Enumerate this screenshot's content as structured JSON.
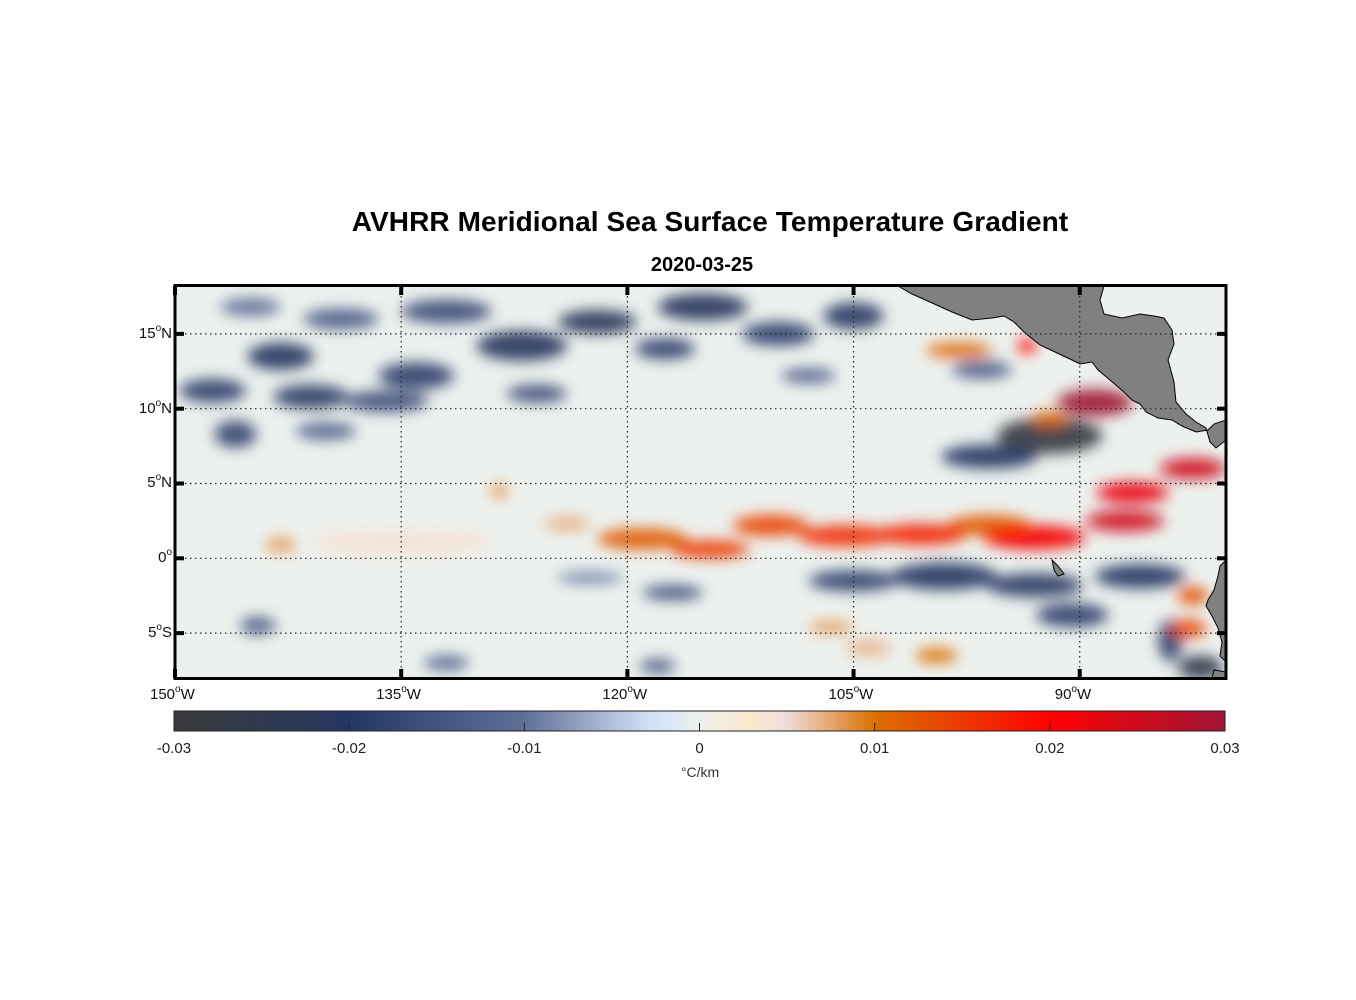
{
  "chart_data": {
    "type": "heatmap",
    "title": "AVHRR Meridional Sea Surface Temperature Gradient",
    "subtitle": "2020-03-25",
    "xlabel": "",
    "ylabel": "",
    "xlim": [
      -150,
      -80.3
    ],
    "ylim": [
      -8,
      18.2
    ],
    "grid": true,
    "x_ticks": [
      {
        "value": -150,
        "num": "150",
        "deg": "o",
        "hemi": "W"
      },
      {
        "value": -135,
        "num": "135",
        "deg": "o",
        "hemi": "W"
      },
      {
        "value": -120,
        "num": "120",
        "deg": "o",
        "hemi": "W"
      },
      {
        "value": -105,
        "num": "105",
        "deg": "o",
        "hemi": "W"
      },
      {
        "value": -90,
        "num": "90",
        "deg": "o",
        "hemi": "W"
      }
    ],
    "y_ticks": [
      {
        "value": 15,
        "num": "15",
        "deg": "o",
        "hemi": "N"
      },
      {
        "value": 10,
        "num": "10",
        "deg": "o",
        "hemi": "N"
      },
      {
        "value": 5,
        "num": "5",
        "deg": "o",
        "hemi": "N"
      },
      {
        "value": 0,
        "num": "0",
        "deg": "o",
        "hemi": ""
      },
      {
        "value": -5,
        "num": "5",
        "deg": "o",
        "hemi": "S"
      }
    ],
    "colorbar": {
      "range": [
        -0.03,
        0.03
      ],
      "ticks": [
        -0.03,
        -0.02,
        -0.01,
        0,
        0.01,
        0.02,
        0.03
      ],
      "tick_labels": [
        "-0.03",
        "-0.02",
        "-0.01",
        "0",
        "0.01",
        "0.02",
        "0.03"
      ],
      "unit": "°C/km",
      "placement": "bottom",
      "colormap": [
        [
          -0.03,
          "#3b3b3b"
        ],
        [
          -0.02,
          "#243761"
        ],
        [
          -0.01,
          "#5f7097"
        ],
        [
          -0.003,
          "#cde0f6"
        ],
        [
          0,
          "#eef0ee"
        ],
        [
          0.003,
          "#fbe8cc"
        ],
        [
          0.005,
          "#eedcdc"
        ],
        [
          0.01,
          "#db7100"
        ],
        [
          0.02,
          "#ff0000"
        ],
        [
          0.03,
          "#a01535"
        ]
      ]
    },
    "land_color": "#808080",
    "field_features": [
      {
        "lon": -143,
        "lat": 13.5,
        "value": -0.02,
        "rlon": 2.2,
        "rlat": 0.9
      },
      {
        "lon": -147.5,
        "lat": 11.2,
        "value": -0.018,
        "rlon": 2.2,
        "rlat": 0.8
      },
      {
        "lon": -141,
        "lat": 10.8,
        "value": -0.019,
        "rlon": 2.5,
        "rlat": 0.8
      },
      {
        "lon": -146,
        "lat": 8.3,
        "value": -0.017,
        "rlon": 1.4,
        "rlat": 0.9
      },
      {
        "lon": -136,
        "lat": 10.5,
        "value": -0.016,
        "rlon": 2.8,
        "rlat": 0.7
      },
      {
        "lon": -134,
        "lat": 12.2,
        "value": -0.018,
        "rlon": 2.5,
        "rlat": 0.9
      },
      {
        "lon": -127,
        "lat": 14.2,
        "value": -0.021,
        "rlon": 3,
        "rlat": 1
      },
      {
        "lon": -122,
        "lat": 15.8,
        "value": -0.022,
        "rlon": 2.6,
        "rlat": 0.8
      },
      {
        "lon": -115,
        "lat": 16.8,
        "value": -0.021,
        "rlon": 3,
        "rlat": 0.9
      },
      {
        "lon": -117.5,
        "lat": 14,
        "value": -0.018,
        "rlon": 2,
        "rlat": 0.7
      },
      {
        "lon": -110,
        "lat": 15,
        "value": -0.018,
        "rlon": 2.4,
        "rlat": 0.8
      },
      {
        "lon": -105,
        "lat": 16.2,
        "value": -0.019,
        "rlon": 2,
        "rlat": 0.9
      },
      {
        "lon": -108,
        "lat": 12.2,
        "value": -0.013,
        "rlon": 1.8,
        "rlat": 0.5
      },
      {
        "lon": -126,
        "lat": 11,
        "value": -0.016,
        "rlon": 2,
        "rlat": 0.6
      },
      {
        "lon": -140,
        "lat": 8.5,
        "value": -0.012,
        "rlon": 2,
        "rlat": 0.6
      },
      {
        "lon": -132,
        "lat": 16.5,
        "value": -0.016,
        "rlon": 3,
        "rlat": 0.8
      },
      {
        "lon": -139,
        "lat": 16,
        "value": -0.013,
        "rlon": 2.5,
        "rlat": 0.7
      },
      {
        "lon": -145,
        "lat": 16.8,
        "value": -0.01,
        "rlon": 2,
        "rlat": 0.6
      },
      {
        "lon": -92,
        "lat": 8.2,
        "value": -0.028,
        "rlon": 3.5,
        "rlat": 1.2
      },
      {
        "lon": -96,
        "lat": 6.8,
        "value": -0.02,
        "rlon": 3.2,
        "rlat": 0.8
      },
      {
        "lon": -96.5,
        "lat": 12.6,
        "value": -0.013,
        "rlon": 2,
        "rlat": 0.6
      },
      {
        "lon": -96,
        "lat": 2.2,
        "value": 0.012,
        "rlon": 2.8,
        "rlat": 0.7
      },
      {
        "lon": -89,
        "lat": 10.4,
        "value": 0.03,
        "rlon": 2.5,
        "rlat": 0.9
      },
      {
        "lon": -93.5,
        "lat": 14.2,
        "value": 0.02,
        "rlon": 0.6,
        "rlat": 0.5
      },
      {
        "lon": -98,
        "lat": 13.9,
        "value": 0.011,
        "rlon": 2.2,
        "rlat": 0.5
      },
      {
        "lon": -92,
        "lat": 9.3,
        "value": 0.011,
        "rlon": 1.2,
        "rlat": 0.5
      },
      {
        "lon": -143,
        "lat": 0.9,
        "value": 0.008,
        "rlon": 1,
        "rlat": 0.5
      },
      {
        "lon": -135,
        "lat": 1.1,
        "value": 0.004,
        "rlon": 6,
        "rlat": 0.8
      },
      {
        "lon": -128.5,
        "lat": 4.5,
        "value": 0.008,
        "rlon": 0.6,
        "rlat": 0.5
      },
      {
        "lon": -124,
        "lat": 2.3,
        "value": 0.007,
        "rlon": 1.5,
        "rlat": 0.5
      },
      {
        "lon": -119,
        "lat": 1.3,
        "value": 0.012,
        "rlon": 3,
        "rlat": 0.7
      },
      {
        "lon": -114.5,
        "lat": 0.6,
        "value": 0.015,
        "rlon": 2.6,
        "rlat": 0.6
      },
      {
        "lon": -110.5,
        "lat": 2.2,
        "value": 0.014,
        "rlon": 2.5,
        "rlat": 0.7
      },
      {
        "lon": -105.5,
        "lat": 1.5,
        "value": 0.016,
        "rlon": 3.2,
        "rlat": 0.7
      },
      {
        "lon": -100.5,
        "lat": 1.6,
        "value": 0.017,
        "rlon": 3,
        "rlat": 0.7
      },
      {
        "lon": -93,
        "lat": 1.4,
        "value": 0.021,
        "rlon": 3.4,
        "rlat": 0.8
      },
      {
        "lon": -87,
        "lat": 2.5,
        "value": 0.025,
        "rlon": 2.6,
        "rlat": 0.7
      },
      {
        "lon": -86.5,
        "lat": 4.4,
        "value": 0.022,
        "rlon": 2.4,
        "rlat": 0.7
      },
      {
        "lon": -82.5,
        "lat": 6,
        "value": 0.025,
        "rlon": 2.2,
        "rlat": 0.7
      },
      {
        "lon": -105,
        "lat": -1.5,
        "value": -0.018,
        "rlon": 3,
        "rlat": 0.7
      },
      {
        "lon": -99,
        "lat": -1.2,
        "value": -0.02,
        "rlon": 3.5,
        "rlat": 0.9
      },
      {
        "lon": -93,
        "lat": -1.8,
        "value": -0.019,
        "rlon": 3.2,
        "rlat": 0.8
      },
      {
        "lon": -86,
        "lat": -1.2,
        "value": -0.02,
        "rlon": 3,
        "rlat": 0.8
      },
      {
        "lon": -90.5,
        "lat": -3.8,
        "value": -0.018,
        "rlon": 2.4,
        "rlat": 0.8
      },
      {
        "lon": -117,
        "lat": -2.3,
        "value": -0.016,
        "rlon": 2,
        "rlat": 0.5
      },
      {
        "lon": -122.5,
        "lat": -1.3,
        "value": -0.009,
        "rlon": 2.2,
        "rlat": 0.4
      },
      {
        "lon": -84,
        "lat": -5.5,
        "value": -0.018,
        "rlon": 0.8,
        "rlat": 1.4
      },
      {
        "lon": -82,
        "lat": -7.3,
        "value": -0.025,
        "rlon": 1.5,
        "rlat": 0.8
      },
      {
        "lon": -82.5,
        "lat": -2.5,
        "value": 0.013,
        "rlon": 1,
        "rlat": 0.6
      },
      {
        "lon": -82.8,
        "lat": -4.7,
        "value": 0.014,
        "rlon": 1.2,
        "rlat": 0.6
      },
      {
        "lon": -99.5,
        "lat": -6.5,
        "value": 0.01,
        "rlon": 1.4,
        "rlat": 0.5
      },
      {
        "lon": -106.5,
        "lat": -4.6,
        "value": 0.008,
        "rlon": 1.5,
        "rlat": 0.4
      },
      {
        "lon": -144.5,
        "lat": -4.5,
        "value": -0.013,
        "rlon": 1.2,
        "rlat": 0.6
      },
      {
        "lon": -132,
        "lat": -7,
        "value": -0.012,
        "rlon": 1.5,
        "rlat": 0.5
      },
      {
        "lon": -118,
        "lat": -7.2,
        "value": -0.013,
        "rlon": 1.2,
        "rlat": 0.5
      },
      {
        "lon": -104,
        "lat": -6,
        "value": 0.007,
        "rlon": 1.5,
        "rlat": 0.5
      }
    ]
  }
}
